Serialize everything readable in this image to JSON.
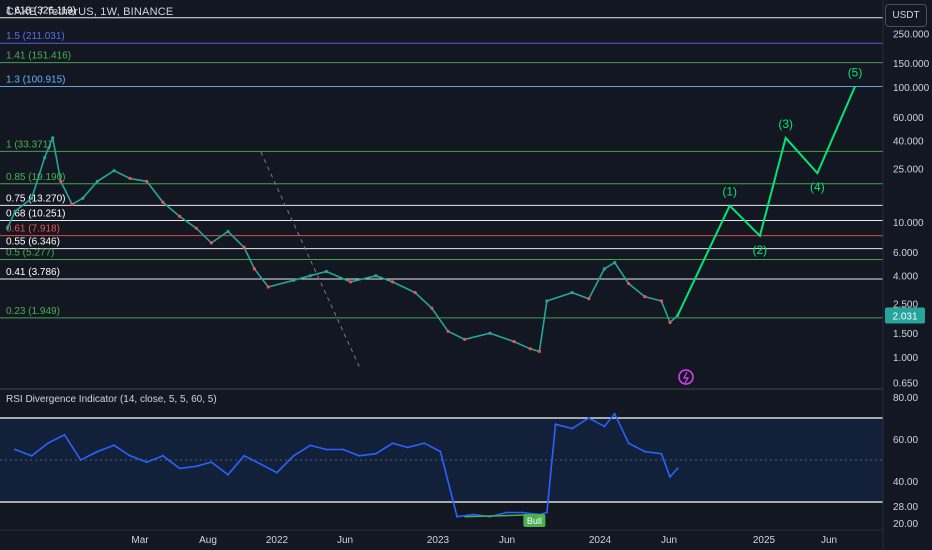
{
  "header": {
    "symbol": "CAKE / TetherUS, 1W, BINANCE",
    "currency": "USDT"
  },
  "fib_levels": [
    {
      "label": "1.618 (326.119)",
      "value": 326.119,
      "color": "#ffffff"
    },
    {
      "label": "1.5 (211.031)",
      "value": 211.031,
      "color": "#5b6cf0"
    },
    {
      "label": "1.41 (151.416)",
      "value": 151.416,
      "color": "#4caf50"
    },
    {
      "label": "1.3 (100.915)",
      "value": 100.915,
      "color": "#64b5f6"
    },
    {
      "label": "1 (33.371)",
      "value": 33.371,
      "color": "#4caf50"
    },
    {
      "label": "0.85 (19.190)",
      "value": 19.19,
      "color": "#4caf50"
    },
    {
      "label": "0.75 (13.270)",
      "value": 13.27,
      "color": "#ffffff"
    },
    {
      "label": "0.68 (10.251)",
      "value": 10.251,
      "color": "#ffffff"
    },
    {
      "label": "0.61 (7.918)",
      "value": 7.918,
      "color": "#ef5350"
    },
    {
      "label": "0.55 (6.346)",
      "value": 6.346,
      "color": "#ffffff"
    },
    {
      "label": "0.5 (5.277)",
      "value": 5.277,
      "color": "#4caf50"
    },
    {
      "label": "0.41 (3.786)",
      "value": 3.786,
      "color": "#ffffff"
    },
    {
      "label": "0.23 (1.949)",
      "value": 1.949,
      "color": "#4caf50"
    }
  ],
  "waves": [
    {
      "label": "(1)",
      "date": "2024-10-20",
      "value": 13.2
    },
    {
      "label": "(2)",
      "date": "2024-12-15",
      "value": 7.9
    },
    {
      "label": "(3)",
      "date": "2025-02-01",
      "value": 42
    },
    {
      "label": "(4)",
      "date": "2025-04-01",
      "value": 23
    },
    {
      "label": "(5)",
      "date": "2025-06-10",
      "value": 100.9
    }
  ],
  "wave_start": {
    "date": "2024-07-15",
    "value": 2.031
  },
  "price_axis": {
    "ticks": [
      "250.000",
      "150.000",
      "100.000",
      "60.000",
      "40.000",
      "25.000",
      "10.000",
      "6.000",
      "4.000",
      "2.500",
      "1.500",
      "1.000",
      "0.650"
    ],
    "last_price": "2.031"
  },
  "rsi": {
    "title": "RSI Divergence Indicator (14, close, 5, 5, 60, 5)",
    "ticks": [
      "80.00",
      "60.00",
      "40.00",
      "28.00",
      "20.00"
    ],
    "upper_band": 70,
    "lower_band": 30,
    "bull_label": "Bull"
  },
  "x_axis": {
    "ticks": [
      "Mar",
      "Aug",
      "2022",
      "Jun",
      "2023",
      "Jun",
      "2024",
      "Jun",
      "2025",
      "Jun"
    ]
  },
  "chart_data": {
    "type": "line",
    "title": "CAKE / TetherUS, 1W, BINANCE",
    "x_scale": "date",
    "y_scale": "log",
    "x_range": [
      "2021-02-01",
      "2025-08-01"
    ],
    "ylim": [
      0.6,
      400
    ],
    "price": {
      "dates": [
        "2021-02-15",
        "2021-03-01",
        "2021-04-01",
        "2021-04-25",
        "2021-05-10",
        "2021-05-25",
        "2021-06-15",
        "2021-07-05",
        "2021-08-01",
        "2021-09-01",
        "2021-10-01",
        "2021-11-01",
        "2021-12-01",
        "2022-01-01",
        "2022-02-01",
        "2022-03-01",
        "2022-04-01",
        "2022-05-01",
        "2022-05-20",
        "2022-06-15",
        "2022-08-01",
        "2022-09-01",
        "2022-10-01",
        "2022-11-15",
        "2023-01-01",
        "2023-02-01",
        "2023-03-15",
        "2023-04-15",
        "2023-05-15",
        "2023-06-15",
        "2023-08-01",
        "2023-09-15",
        "2023-10-15",
        "2023-11-01",
        "2023-11-15",
        "2024-01-01",
        "2024-02-01",
        "2024-03-01",
        "2024-03-20",
        "2024-04-15",
        "2024-05-15",
        "2024-06-15",
        "2024-07-01",
        "2024-07-15"
      ],
      "values": [
        9.0,
        12.0,
        15.0,
        30.0,
        42.0,
        20.0,
        13.5,
        15.0,
        20.0,
        24.0,
        21.0,
        20.0,
        14.0,
        11.0,
        9.0,
        7.0,
        8.5,
        6.5,
        4.5,
        3.3,
        3.7,
        4.0,
        4.3,
        3.6,
        4.0,
        3.6,
        3.0,
        2.3,
        1.55,
        1.35,
        1.5,
        1.3,
        1.15,
        1.1,
        2.6,
        3.0,
        2.7,
        4.5,
        5.0,
        3.5,
        2.8,
        2.6,
        1.8,
        2.031
      ]
    },
    "series": [
      {
        "dates": [
          "2021-03-01",
          "2021-04-01",
          "2021-05-01",
          "2021-06-01",
          "2021-07-01",
          "2021-08-01",
          "2021-09-01",
          "2021-10-01",
          "2021-11-01",
          "2021-12-01",
          "2022-01-01",
          "2022-02-01",
          "2022-03-01",
          "2022-04-01",
          "2022-05-01",
          "2022-06-01",
          "2022-07-01",
          "2022-08-01",
          "2022-09-01",
          "2022-10-01",
          "2022-11-01",
          "2022-12-01",
          "2023-01-01",
          "2023-02-01",
          "2023-03-01",
          "2023-04-01",
          "2023-05-01",
          "2023-06-01",
          "2023-07-01",
          "2023-08-01",
          "2023-09-01",
          "2023-10-01",
          "2023-11-01",
          "2023-11-15",
          "2023-12-01",
          "2024-01-01",
          "2024-02-01",
          "2024-03-01",
          "2024-03-20",
          "2024-04-15",
          "2024-05-15",
          "2024-06-15",
          "2024-07-01",
          "2024-07-15"
        ],
        "values": [
          55,
          52,
          58,
          62,
          50,
          54,
          57,
          52,
          49,
          52,
          46,
          47,
          49,
          43,
          52,
          48,
          44,
          52,
          57,
          55,
          55,
          52,
          53,
          58,
          56,
          58,
          54,
          23,
          24,
          23,
          25,
          25,
          24,
          25,
          67,
          65,
          70,
          66,
          72,
          58,
          54,
          53,
          42,
          46
        ]
      }
    ],
    "rsi_ylim": [
      20,
      80
    ],
    "xlabel": "",
    "ylabel": ""
  }
}
